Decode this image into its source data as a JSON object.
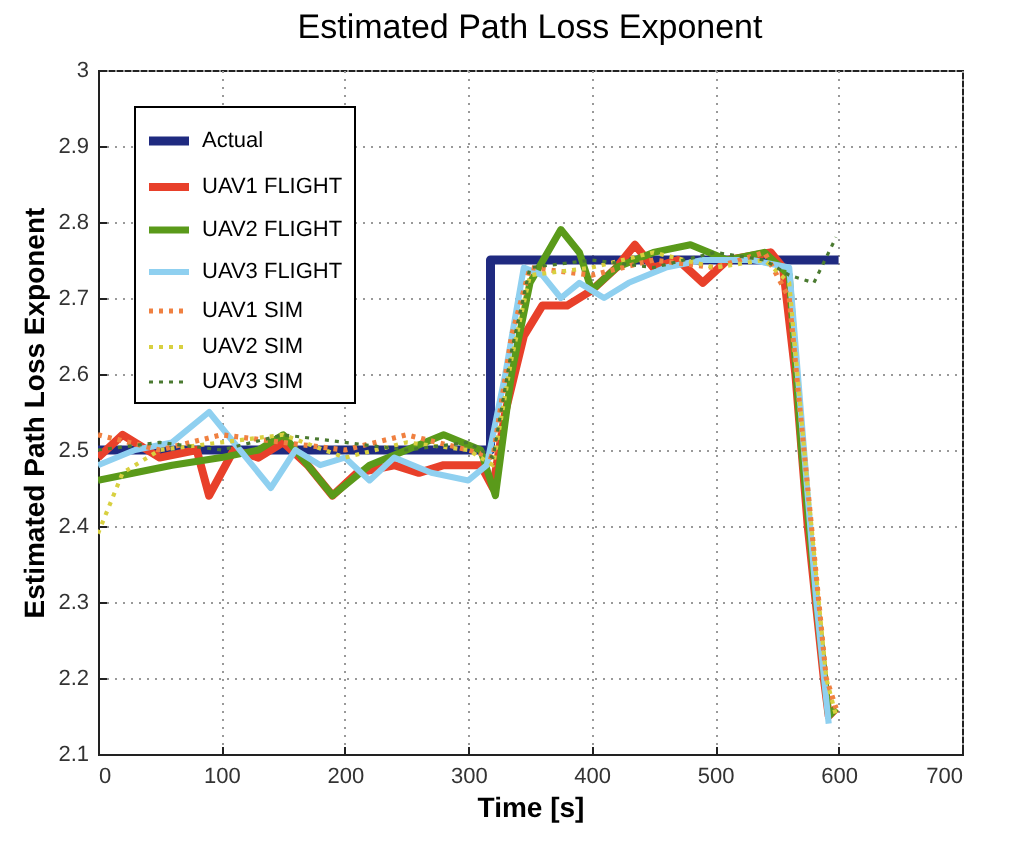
{
  "chart_data": {
    "type": "line",
    "title": "Estimated Path Loss Exponent",
    "xlabel": "Time [s]",
    "ylabel": "Estimated Path Loss Exponent",
    "xlim": [
      0,
      700
    ],
    "xticks": [
      0,
      100,
      200,
      300,
      400,
      500,
      600,
      700
    ],
    "ylim": [
      2.1,
      3
    ],
    "yticks": [
      2.1,
      2.2,
      2.3,
      2.4,
      2.5,
      2.6,
      2.7,
      2.8,
      2.9,
      3
    ],
    "grid": true,
    "legend": "top left",
    "marker": "none",
    "series": [
      {
        "name": "Actual",
        "color": "#1f2a80",
        "line_style": "solid",
        "x": [
          0,
          318,
          318,
          600
        ],
        "values": [
          2.5,
          2.5,
          2.75,
          2.75
        ]
      },
      {
        "name": "UAV1 FLIGHT",
        "color": "#e8402a",
        "line_style": "solid",
        "x": [
          0,
          20,
          50,
          80,
          90,
          110,
          130,
          150,
          170,
          190,
          210,
          240,
          260,
          280,
          310,
          320,
          330,
          345,
          360,
          380,
          400,
          420,
          435,
          450,
          470,
          490,
          510,
          545,
          555,
          565,
          575,
          588,
          592,
          598
        ],
        "values": [
          2.49,
          2.52,
          2.49,
          2.5,
          2.44,
          2.5,
          2.49,
          2.51,
          2.48,
          2.44,
          2.47,
          2.48,
          2.47,
          2.48,
          2.48,
          2.45,
          2.55,
          2.65,
          2.69,
          2.69,
          2.71,
          2.74,
          2.77,
          2.74,
          2.75,
          2.72,
          2.75,
          2.76,
          2.74,
          2.6,
          2.4,
          2.2,
          2.15,
          2.16
        ]
      },
      {
        "name": "UAV2 FLIGHT",
        "color": "#5a9a1a",
        "line_style": "solid",
        "x": [
          0,
          30,
          60,
          100,
          130,
          150,
          170,
          190,
          220,
          250,
          280,
          310,
          322,
          335,
          350,
          375,
          390,
          400,
          420,
          450,
          480,
          510,
          540,
          560,
          570,
          582,
          592,
          598
        ],
        "values": [
          2.46,
          2.47,
          2.48,
          2.49,
          2.5,
          2.52,
          2.48,
          2.44,
          2.48,
          2.5,
          2.52,
          2.5,
          2.44,
          2.6,
          2.72,
          2.79,
          2.76,
          2.71,
          2.74,
          2.76,
          2.77,
          2.75,
          2.76,
          2.73,
          2.5,
          2.3,
          2.15,
          2.16
        ]
      },
      {
        "name": "UAV3 FLIGHT",
        "color": "#8fd0f0",
        "line_style": "solid",
        "x": [
          0,
          30,
          60,
          90,
          115,
          140,
          160,
          180,
          200,
          220,
          240,
          270,
          300,
          315,
          330,
          345,
          360,
          375,
          390,
          410,
          430,
          460,
          490,
          530,
          560,
          572,
          582,
          592
        ],
        "values": [
          2.48,
          2.5,
          2.51,
          2.55,
          2.5,
          2.45,
          2.5,
          2.48,
          2.49,
          2.46,
          2.49,
          2.47,
          2.46,
          2.48,
          2.6,
          2.74,
          2.73,
          2.7,
          2.72,
          2.7,
          2.72,
          2.74,
          2.75,
          2.75,
          2.74,
          2.5,
          2.3,
          2.14
        ]
      },
      {
        "name": "UAV1 SIM",
        "color": "#f08040",
        "line_style": "dotted",
        "x": [
          0,
          50,
          100,
          150,
          200,
          250,
          300,
          320,
          335,
          350,
          400,
          450,
          500,
          540,
          560,
          575,
          590,
          598
        ],
        "values": [
          2.52,
          2.5,
          2.52,
          2.51,
          2.5,
          2.52,
          2.5,
          2.49,
          2.65,
          2.74,
          2.73,
          2.75,
          2.74,
          2.76,
          2.7,
          2.45,
          2.2,
          2.16
        ]
      },
      {
        "name": "UAV2 SIM",
        "color": "#d8d040",
        "line_style": "dotted",
        "x": [
          0,
          20,
          50,
          100,
          150,
          200,
          250,
          300,
          320,
          335,
          350,
          400,
          450,
          500,
          540,
          560,
          575,
          590,
          598
        ],
        "values": [
          2.39,
          2.47,
          2.5,
          2.51,
          2.52,
          2.49,
          2.51,
          2.5,
          2.48,
          2.62,
          2.73,
          2.74,
          2.76,
          2.74,
          2.75,
          2.72,
          2.45,
          2.2,
          2.15
        ]
      },
      {
        "name": "UAV3 SIM",
        "color": "#4a7a30",
        "line_style": "dotted",
        "x": [
          0,
          50,
          100,
          150,
          200,
          250,
          300,
          320,
          335,
          350,
          400,
          450,
          500,
          540,
          560,
          580,
          598
        ],
        "values": [
          2.5,
          2.51,
          2.5,
          2.52,
          2.51,
          2.5,
          2.51,
          2.49,
          2.63,
          2.74,
          2.75,
          2.74,
          2.76,
          2.75,
          2.73,
          2.72,
          2.78
        ]
      }
    ]
  }
}
